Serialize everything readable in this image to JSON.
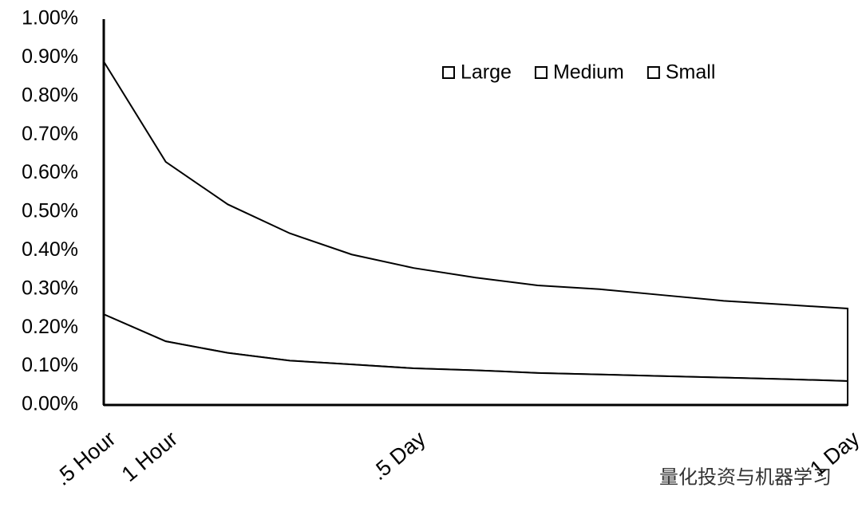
{
  "chart_data": {
    "type": "area",
    "categories": [
      ".5 Hour",
      "1 Hour",
      null,
      null,
      null,
      ".5 Day",
      null,
      null,
      null,
      null,
      null,
      null,
      "1 Day"
    ],
    "series": [
      {
        "name": "Small",
        "color": "#ffffff",
        "values": [
          0.89,
          0.63,
          0.52,
          0.445,
          0.39,
          0.355,
          0.33,
          0.31,
          0.3,
          0.285,
          0.27,
          0.26,
          0.25
        ]
      },
      {
        "name": "Medium",
        "color": "#ffffff",
        "values": [
          0.235,
          0.165,
          0.135,
          0.115,
          0.105,
          0.095,
          0.09,
          0.083,
          0.079,
          0.075,
          0.071,
          0.067,
          0.062
        ]
      },
      {
        "name": "Large",
        "color": "#ffffff",
        "values": [
          0.235,
          0.165,
          0.135,
          0.115,
          0.105,
          0.095,
          0.09,
          0.083,
          0.079,
          0.075,
          0.071,
          0.067,
          0.062
        ]
      }
    ],
    "legend_order": [
      "Large",
      "Medium",
      "Small"
    ],
    "ylim": [
      0,
      1
    ],
    "yticks": [
      {
        "value": 0,
        "label": "0.00%"
      },
      {
        "value": 0.1,
        "label": "0.10%"
      },
      {
        "value": 0.2,
        "label": "0.20%"
      },
      {
        "value": 0.3,
        "label": "0.30%"
      },
      {
        "value": 0.4,
        "label": "0.40%"
      },
      {
        "value": 0.5,
        "label": "0.50%"
      },
      {
        "value": 0.6,
        "label": "0.60%"
      },
      {
        "value": 0.7,
        "label": "0.70%"
      },
      {
        "value": 0.8,
        "label": "0.80%"
      },
      {
        "value": 0.9,
        "label": "0.90%"
      },
      {
        "value": 1,
        "label": "1.00%"
      }
    ],
    "legend": "top-right",
    "watermark": "量化投资与机器学习"
  }
}
